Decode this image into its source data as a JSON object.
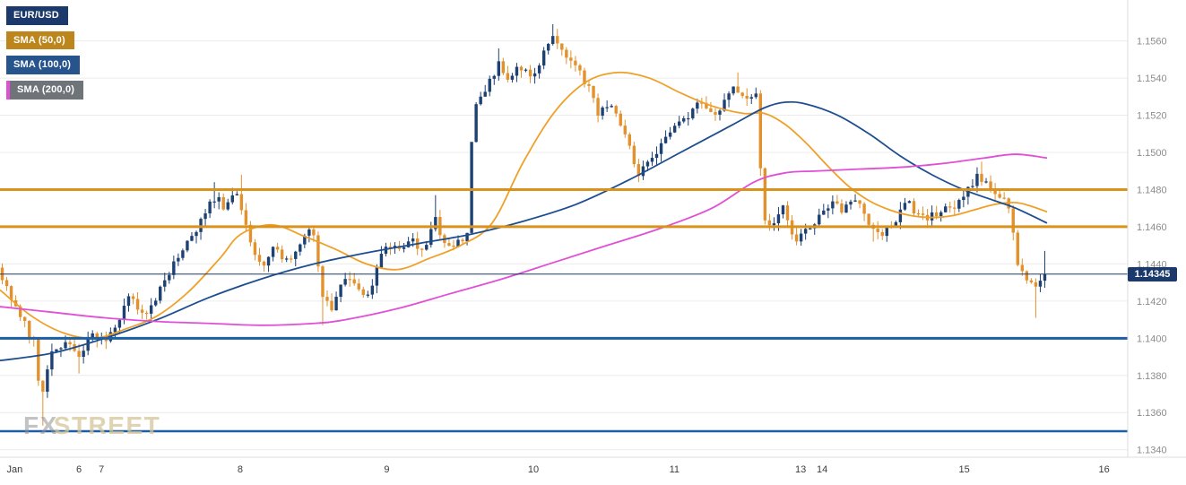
{
  "legend": [
    {
      "label": "EUR/USD",
      "color": "#1b3a6b"
    },
    {
      "label": "SMA (50,0)",
      "color": "#bd861c"
    },
    {
      "label": "SMA (100,0)",
      "color": "#27548c"
    },
    {
      "label": "SMA (200,0)",
      "color": "#6e7478",
      "accent": "#e14fd6"
    }
  ],
  "watermark": {
    "fx": "FX",
    "street": "STREET"
  },
  "last_price": {
    "value": "1.14345",
    "badge_color": "#1b3a6b"
  },
  "chart_data": {
    "type": "candlestick",
    "instrument": "EUR/USD",
    "y_axis": {
      "ticks": [
        "1.1560",
        "1.1540",
        "1.1520",
        "1.1500",
        "1.1480",
        "1.1460",
        "1.1440",
        "1.1420",
        "1.1400",
        "1.1380",
        "1.1360",
        "1.1340"
      ],
      "price_at_top": 1.1582,
      "price_at_bottom": 1.1336
    },
    "x_axis": {
      "ticks": [
        {
          "label": "Jan",
          "f": 0.006
        },
        {
          "label": "6",
          "f": 0.07
        },
        {
          "label": "7",
          "f": 0.09
        },
        {
          "label": "8",
          "f": 0.213
        },
        {
          "label": "9",
          "f": 0.343
        },
        {
          "label": "10",
          "f": 0.473
        },
        {
          "label": "11",
          "f": 0.598
        },
        {
          "label": "13",
          "f": 0.71
        },
        {
          "label": "14",
          "f": 0.729
        },
        {
          "label": "15",
          "f": 0.855
        },
        {
          "label": "16",
          "f": 0.979
        }
      ]
    },
    "levels": [
      {
        "name": "resistance-1.1480",
        "price": 1.148,
        "color": "#d9921c",
        "width": 3
      },
      {
        "name": "resistance-1.1460",
        "price": 1.146,
        "color": "#d9921c",
        "width": 3
      },
      {
        "name": "support-1.1400",
        "price": 1.14,
        "color": "#1d5fa3",
        "width": 3
      },
      {
        "name": "support-1.1350",
        "price": 1.135,
        "color": "#1d5fa3",
        "width": 2.5
      }
    ],
    "last_price_line": {
      "price": 1.14345,
      "color": "#1b3a6b",
      "width": 1
    },
    "style": {
      "grid_color": "#ececec",
      "axis_text_color": "#8c8c8c",
      "x_text_color": "#3c3c3c",
      "up_color": "#1c4172",
      "down_color": "#e2912d",
      "background": "#ffffff",
      "axis_border_color": "#dcdcdc"
    },
    "candles": {
      "count": 232,
      "last_close": 1.14345,
      "close_path": [
        [
          0.0,
          1.1438
        ],
        [
          0.013,
          1.142
        ],
        [
          0.026,
          1.1408
        ],
        [
          0.036,
          1.1396
        ],
        [
          0.041,
          1.1362
        ],
        [
          0.05,
          1.139
        ],
        [
          0.064,
          1.14
        ],
        [
          0.077,
          1.1389
        ],
        [
          0.09,
          1.1404
        ],
        [
          0.103,
          1.1398
        ],
        [
          0.116,
          1.141
        ],
        [
          0.128,
          1.1424
        ],
        [
          0.137,
          1.1412
        ],
        [
          0.15,
          1.142
        ],
        [
          0.167,
          1.1438
        ],
        [
          0.18,
          1.145
        ],
        [
          0.193,
          1.1461
        ],
        [
          0.205,
          1.1477
        ],
        [
          0.218,
          1.1469
        ],
        [
          0.229,
          1.1479
        ],
        [
          0.24,
          1.1452
        ],
        [
          0.253,
          1.1441
        ],
        [
          0.265,
          1.1448
        ],
        [
          0.278,
          1.1441
        ],
        [
          0.291,
          1.1452
        ],
        [
          0.3,
          1.1464
        ],
        [
          0.31,
          1.1421
        ],
        [
          0.318,
          1.1416
        ],
        [
          0.33,
          1.1431
        ],
        [
          0.342,
          1.1428
        ],
        [
          0.355,
          1.1423
        ],
        [
          0.368,
          1.1449
        ],
        [
          0.381,
          1.1447
        ],
        [
          0.394,
          1.1454
        ],
        [
          0.407,
          1.1448
        ],
        [
          0.417,
          1.1466
        ],
        [
          0.428,
          1.1448
        ],
        [
          0.438,
          1.1452
        ],
        [
          0.449,
          1.1456
        ],
        [
          0.454,
          1.1524
        ],
        [
          0.467,
          1.1534
        ],
        [
          0.478,
          1.1547
        ],
        [
          0.488,
          1.154
        ],
        [
          0.498,
          1.1547
        ],
        [
          0.509,
          1.1538
        ],
        [
          0.52,
          1.155
        ],
        [
          0.529,
          1.1562
        ],
        [
          0.539,
          1.1554
        ],
        [
          0.552,
          1.1547
        ],
        [
          0.563,
          1.1537
        ],
        [
          0.574,
          1.1521
        ],
        [
          0.586,
          1.1526
        ],
        [
          0.599,
          1.1509
        ],
        [
          0.612,
          1.149
        ],
        [
          0.623,
          1.1496
        ],
        [
          0.635,
          1.1505
        ],
        [
          0.646,
          1.1512
        ],
        [
          0.659,
          1.152
        ],
        [
          0.672,
          1.1527
        ],
        [
          0.685,
          1.1521
        ],
        [
          0.695,
          1.1529
        ],
        [
          0.706,
          1.1535
        ],
        [
          0.717,
          1.1527
        ],
        [
          0.726,
          1.153
        ],
        [
          0.73,
          1.1468
        ],
        [
          0.738,
          1.1458
        ],
        [
          0.749,
          1.1471
        ],
        [
          0.76,
          1.1452
        ],
        [
          0.77,
          1.1458
        ],
        [
          0.783,
          1.1465
        ],
        [
          0.796,
          1.1474
        ],
        [
          0.809,
          1.1469
        ],
        [
          0.82,
          1.1477
        ],
        [
          0.832,
          1.1463
        ],
        [
          0.843,
          1.1455
        ],
        [
          0.854,
          1.1461
        ],
        [
          0.866,
          1.1474
        ],
        [
          0.877,
          1.1469
        ],
        [
          0.89,
          1.1464
        ],
        [
          0.903,
          1.1471
        ],
        [
          0.914,
          1.1469
        ],
        [
          0.926,
          1.148
        ],
        [
          0.936,
          1.1487
        ],
        [
          0.946,
          1.1482
        ],
        [
          0.957,
          1.1477
        ],
        [
          0.967,
          1.147
        ],
        [
          0.974,
          1.1441
        ],
        [
          0.983,
          1.1431
        ],
        [
          0.991,
          1.1426
        ],
        [
          1.0,
          1.14345
        ]
      ],
      "high_spikes": [
        [
          0.205,
          1.1484
        ],
        [
          0.229,
          1.1488
        ],
        [
          0.417,
          1.1477
        ],
        [
          0.478,
          1.1556
        ],
        [
          0.529,
          1.1569
        ],
        [
          0.706,
          1.1543
        ],
        [
          0.936,
          1.1495
        ],
        [
          1.0,
          1.1447
        ]
      ],
      "low_spikes": [
        [
          0.041,
          1.1353
        ],
        [
          0.077,
          1.1381
        ],
        [
          0.31,
          1.1407
        ],
        [
          0.612,
          1.1484
        ],
        [
          0.76,
          1.145
        ],
        [
          0.832,
          1.1452
        ],
        [
          0.991,
          1.1411
        ]
      ]
    },
    "sma": [
      {
        "name": "SMA (50,0)",
        "color": "#efa028",
        "path": [
          [
            0.0,
            1.1426
          ],
          [
            0.03,
            1.1412
          ],
          [
            0.06,
            1.1403
          ],
          [
            0.09,
            1.14
          ],
          [
            0.12,
            1.1405
          ],
          [
            0.15,
            1.1412
          ],
          [
            0.18,
            1.1425
          ],
          [
            0.21,
            1.1443
          ],
          [
            0.23,
            1.1456
          ],
          [
            0.26,
            1.1461
          ],
          [
            0.29,
            1.1455
          ],
          [
            0.32,
            1.1448
          ],
          [
            0.35,
            1.144
          ],
          [
            0.38,
            1.1437
          ],
          [
            0.41,
            1.1443
          ],
          [
            0.44,
            1.145
          ],
          [
            0.47,
            1.1462
          ],
          [
            0.5,
            1.1495
          ],
          [
            0.53,
            1.1522
          ],
          [
            0.56,
            1.1538
          ],
          [
            0.59,
            1.1543
          ],
          [
            0.62,
            1.154
          ],
          [
            0.65,
            1.1532
          ],
          [
            0.68,
            1.1525
          ],
          [
            0.71,
            1.1521
          ],
          [
            0.73,
            1.1521
          ],
          [
            0.75,
            1.1515
          ],
          [
            0.77,
            1.1505
          ],
          [
            0.79,
            1.1493
          ],
          [
            0.81,
            1.1482
          ],
          [
            0.83,
            1.1474
          ],
          [
            0.85,
            1.1469
          ],
          [
            0.87,
            1.1466
          ],
          [
            0.89,
            1.1465
          ],
          [
            0.91,
            1.1466
          ],
          [
            0.93,
            1.1469
          ],
          [
            0.95,
            1.1472
          ],
          [
            0.97,
            1.1473
          ],
          [
            0.985,
            1.1471
          ],
          [
            1.0,
            1.1468
          ]
        ]
      },
      {
        "name": "SMA (100,0)",
        "color": "#1d4e90",
        "path": [
          [
            0.0,
            1.1388
          ],
          [
            0.05,
            1.1392
          ],
          [
            0.1,
            1.14
          ],
          [
            0.15,
            1.141
          ],
          [
            0.2,
            1.1422
          ],
          [
            0.25,
            1.1432
          ],
          [
            0.3,
            1.144
          ],
          [
            0.35,
            1.1446
          ],
          [
            0.4,
            1.1451
          ],
          [
            0.45,
            1.1456
          ],
          [
            0.5,
            1.1463
          ],
          [
            0.55,
            1.1472
          ],
          [
            0.6,
            1.1485
          ],
          [
            0.65,
            1.15
          ],
          [
            0.7,
            1.1515
          ],
          [
            0.73,
            1.1524
          ],
          [
            0.75,
            1.1527
          ],
          [
            0.77,
            1.1526
          ],
          [
            0.8,
            1.152
          ],
          [
            0.83,
            1.151
          ],
          [
            0.86,
            1.1498
          ],
          [
            0.89,
            1.1488
          ],
          [
            0.92,
            1.148
          ],
          [
            0.95,
            1.1474
          ],
          [
            0.97,
            1.147
          ],
          [
            1.0,
            1.1462
          ]
        ]
      },
      {
        "name": "SMA (200,0)",
        "color": "#e14fd6",
        "path": [
          [
            0.0,
            1.1417
          ],
          [
            0.05,
            1.1414
          ],
          [
            0.1,
            1.1411
          ],
          [
            0.15,
            1.1409
          ],
          [
            0.2,
            1.1408
          ],
          [
            0.25,
            1.1407
          ],
          [
            0.3,
            1.1408
          ],
          [
            0.33,
            1.141
          ],
          [
            0.38,
            1.1416
          ],
          [
            0.43,
            1.1424
          ],
          [
            0.48,
            1.1432
          ],
          [
            0.53,
            1.1441
          ],
          [
            0.58,
            1.145
          ],
          [
            0.63,
            1.1459
          ],
          [
            0.68,
            1.147
          ],
          [
            0.72,
            1.1484
          ],
          [
            0.75,
            1.1489
          ],
          [
            0.78,
            1.149
          ],
          [
            0.82,
            1.1491
          ],
          [
            0.86,
            1.1492
          ],
          [
            0.9,
            1.1494
          ],
          [
            0.94,
            1.1497
          ],
          [
            0.97,
            1.1499
          ],
          [
            1.0,
            1.1497
          ]
        ]
      }
    ]
  }
}
